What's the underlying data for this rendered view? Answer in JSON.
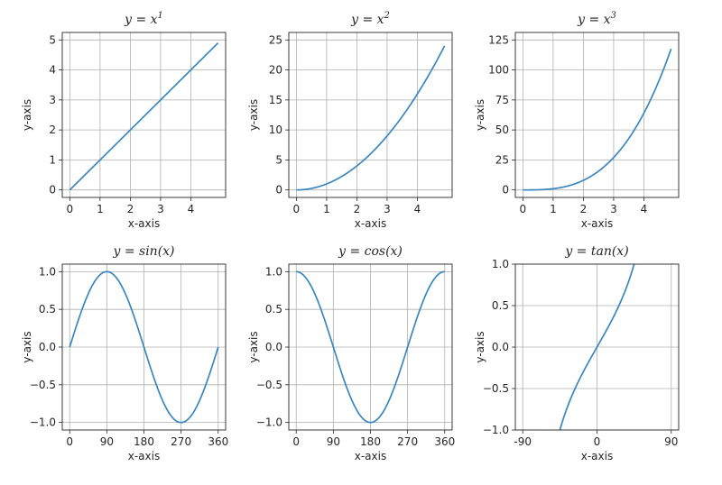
{
  "chart_data": [
    {
      "type": "line",
      "title": {
        "base": "y = x",
        "sup": "1"
      },
      "xlabel": "x-axis",
      "ylabel": "y-axis",
      "xlim": [
        -0.25,
        5.15
      ],
      "ylim": [
        -0.25,
        5.25
      ],
      "xticks": [
        0,
        1,
        2,
        3,
        4
      ],
      "xtick_labels": [
        "0",
        "1",
        "2",
        "3",
        "4"
      ],
      "yticks": [
        0,
        1,
        2,
        3,
        4,
        5
      ],
      "ytick_labels": [
        "0",
        "1",
        "2",
        "3",
        "4",
        "5"
      ],
      "grid": true,
      "series": [
        {
          "color": "#3a87c1",
          "fn": "pow1",
          "domain": [
            0,
            4.9
          ]
        }
      ]
    },
    {
      "type": "line",
      "title": {
        "base": "y = x",
        "sup": "2"
      },
      "xlabel": "x-axis",
      "ylabel": "y-axis",
      "xlim": [
        -0.25,
        5.15
      ],
      "ylim": [
        -1.25,
        26.25
      ],
      "xticks": [
        0,
        1,
        2,
        3,
        4
      ],
      "xtick_labels": [
        "0",
        "1",
        "2",
        "3",
        "4"
      ],
      "yticks": [
        0,
        5,
        10,
        15,
        20,
        25
      ],
      "ytick_labels": [
        "0",
        "5",
        "10",
        "15",
        "20",
        "25"
      ],
      "grid": true,
      "series": [
        {
          "color": "#3a87c1",
          "fn": "pow2",
          "domain": [
            0,
            4.9
          ]
        }
      ]
    },
    {
      "type": "line",
      "title": {
        "base": "y = x",
        "sup": "3"
      },
      "xlabel": "x-axis",
      "ylabel": "y-axis",
      "xlim": [
        -0.25,
        5.15
      ],
      "ylim": [
        -6.25,
        131.25
      ],
      "xticks": [
        0,
        1,
        2,
        3,
        4
      ],
      "xtick_labels": [
        "0",
        "1",
        "2",
        "3",
        "4"
      ],
      "yticks": [
        0,
        25,
        50,
        75,
        100,
        125
      ],
      "ytick_labels": [
        "0",
        "25",
        "50",
        "75",
        "100",
        "125"
      ],
      "grid": true,
      "series": [
        {
          "color": "#3a87c1",
          "fn": "pow3",
          "domain": [
            0,
            4.9
          ]
        }
      ]
    },
    {
      "type": "line",
      "title": {
        "base": "y = sin(x)",
        "sup": ""
      },
      "xlabel": "x-axis",
      "ylabel": "y-axis",
      "xlim": [
        -18,
        378
      ],
      "ylim": [
        -1.1,
        1.1
      ],
      "xticks": [
        0,
        90,
        180,
        270,
        360
      ],
      "xtick_labels": [
        "0",
        "90",
        "180",
        "270",
        "360"
      ],
      "yticks": [
        -1,
        -0.5,
        0,
        0.5,
        1
      ],
      "ytick_labels": [
        "−1.0",
        "−0.5",
        "0.0",
        "0.5",
        "1.0"
      ],
      "grid": true,
      "series": [
        {
          "color": "#3a87c1",
          "fn": "sin",
          "domain": [
            0,
            360
          ]
        }
      ]
    },
    {
      "type": "line",
      "title": {
        "base": "y = cos(x)",
        "sup": ""
      },
      "xlabel": "x-axis",
      "ylabel": "y-axis",
      "xlim": [
        -18,
        378
      ],
      "ylim": [
        -1.1,
        1.1
      ],
      "xticks": [
        0,
        90,
        180,
        270,
        360
      ],
      "xtick_labels": [
        "0",
        "90",
        "180",
        "270",
        "360"
      ],
      "yticks": [
        -1,
        -0.5,
        0,
        0.5,
        1
      ],
      "ytick_labels": [
        "−1.0",
        "−0.5",
        "0.0",
        "0.5",
        "1.0"
      ],
      "grid": true,
      "series": [
        {
          "color": "#3a87c1",
          "fn": "cos",
          "domain": [
            0,
            360
          ]
        }
      ]
    },
    {
      "type": "line",
      "title": {
        "base": "y = tan(x)",
        "sup": ""
      },
      "xlabel": "x-axis",
      "ylabel": "y-axis",
      "xlim": [
        -99,
        99
      ],
      "ylim": [
        -1,
        1
      ],
      "xticks": [
        -90,
        0,
        90
      ],
      "xtick_labels": [
        "-90",
        "0",
        "90"
      ],
      "yticks": [
        -1,
        -0.5,
        0,
        0.5,
        1
      ],
      "ytick_labels": [
        "−1.0",
        "−0.5",
        "0.0",
        "0.5",
        "1.0"
      ],
      "grid": true,
      "series": [
        {
          "color": "#3a87c1",
          "fn": "tan",
          "domain": [
            -45,
            45
          ]
        }
      ]
    }
  ]
}
